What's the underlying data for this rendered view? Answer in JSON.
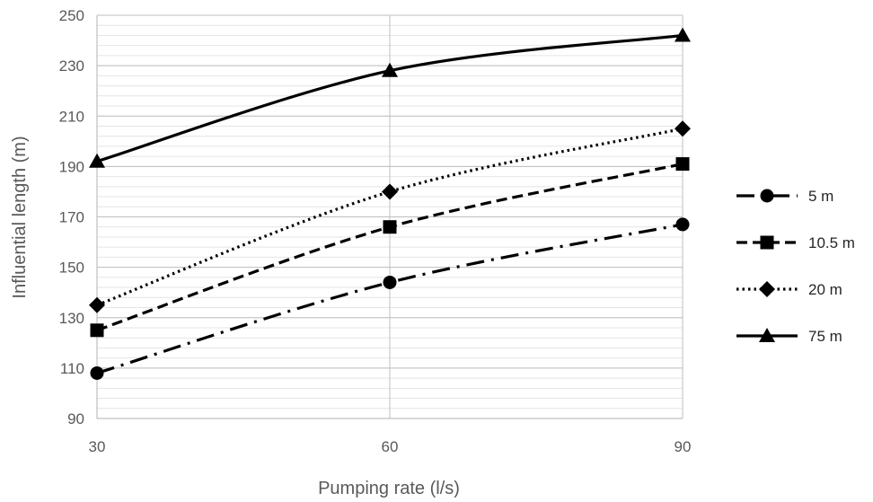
{
  "chart_data": {
    "type": "line",
    "title": "",
    "xlabel": "Pumping rate (l/s)",
    "ylabel": "Influential length (m)",
    "x": [
      30,
      60,
      90
    ],
    "xticks": [
      "30",
      "60",
      "90"
    ],
    "ylim": [
      90,
      250
    ],
    "yticks": [
      90,
      110,
      130,
      150,
      170,
      190,
      210,
      230,
      250
    ],
    "minor_grid_step": 4,
    "legend_position": "right",
    "series": [
      {
        "name": "5 m",
        "values": [
          108,
          144,
          167
        ],
        "marker": "circle",
        "line_style": "dash-dot",
        "color": "#000000"
      },
      {
        "name": "10.5 m",
        "values": [
          125,
          166,
          191
        ],
        "marker": "square",
        "line_style": "dashed",
        "color": "#000000"
      },
      {
        "name": "20 m",
        "values": [
          135,
          180,
          205
        ],
        "marker": "diamond",
        "line_style": "dotted",
        "color": "#000000"
      },
      {
        "name": "75 m",
        "values": [
          192,
          228,
          242
        ],
        "marker": "triangle",
        "line_style": "solid",
        "color": "#000000"
      }
    ]
  }
}
